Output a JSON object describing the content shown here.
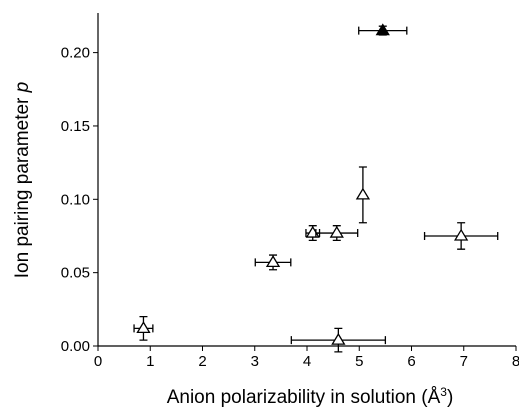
{
  "chart_data": {
    "type": "scatter",
    "xlabel": "Anion polarizability in solution (Å",
    "xlabel_sup": "3",
    "xlabel_end": ")",
    "ylabel": "Ion pairing parameter",
    "ylabel_symbol": "p",
    "xlim": [
      0,
      8
    ],
    "ylim": [
      0,
      0.227
    ],
    "xticks": [
      0,
      1,
      2,
      3,
      4,
      5,
      6,
      7,
      8
    ],
    "yticks": [
      {
        "value": 0,
        "label": "0.00"
      },
      {
        "value": 0.05,
        "label": "0.05"
      },
      {
        "value": 0.1,
        "label": "0.10"
      },
      {
        "value": 0.15,
        "label": "0.15"
      },
      {
        "value": 0.2,
        "label": "0.20"
      }
    ],
    "series": [
      {
        "color": "#000000",
        "marker_fill": "#ffffff",
        "x": [
          0.87,
          3.35,
          4.11,
          4.57,
          5.07,
          6.95,
          4.6
        ],
        "values": [
          0.012,
          0.057,
          0.077,
          0.077,
          0.103,
          0.075,
          0.004
        ],
        "xerr": [
          0.18,
          0.34,
          0.13,
          0.4,
          0.0,
          0.7,
          0.9
        ],
        "yerr": [
          0.008,
          0.005,
          0.005,
          0.005,
          0.019,
          0.009,
          0.008
        ]
      },
      {
        "color": "#000000",
        "marker_fill": "#000000",
        "x": [
          5.45
        ],
        "values": [
          0.215
        ],
        "xerr": [
          0.46
        ],
        "yerr": [
          0.003
        ]
      }
    ]
  }
}
